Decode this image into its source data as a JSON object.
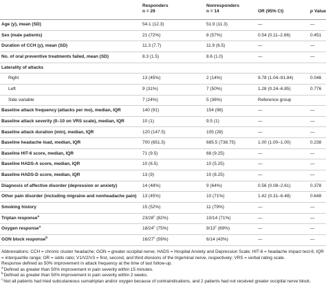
{
  "table": {
    "header": {
      "responders": [
        "Responders",
        "n = 29"
      ],
      "nonresponders": [
        "Nonresponders",
        "n = 14"
      ],
      "or": "OR (95% CI)",
      "p": {
        "italic": "p",
        "rest": "Value"
      }
    },
    "rows": [
      {
        "label": "Age (y), mean (SD)",
        "cells": [
          "54.1 (12.3)",
          "51.9 (11.3)",
          "—",
          "—"
        ]
      },
      {
        "label": "Sex (male patients)",
        "cells": [
          "21 (72%)",
          "8 (57%)",
          "0.54 (0.11–2.66)",
          "0.451"
        ]
      },
      {
        "label": "Duration of CCH (y), mean (SD)",
        "cells": [
          "11.3 (7.7)",
          "11.9 (6.5)",
          "—",
          "—"
        ]
      },
      {
        "label": "No. of oral preventive treatments failed, mean (SD)",
        "cells": [
          "8.3 (1.5)",
          "8.6 (1.0)",
          "—",
          "—"
        ]
      },
      {
        "label": "Laterality of attacks",
        "cells": []
      },
      {
        "label": "Right",
        "sub": true,
        "cells": [
          "13 (45%)",
          "2 (14%)",
          "9.78 (1.04–91.84)",
          "0.046"
        ]
      },
      {
        "label": "Left",
        "sub": true,
        "cells": [
          "9 (31%)",
          "7 (50%)",
          "1.28 (0.24–6.85)",
          "0.776"
        ]
      },
      {
        "label": "Side variable",
        "sub": true,
        "cells": [
          "7 (24%)",
          "5 (36%)",
          "Reference group"
        ]
      },
      {
        "label": "Baseline attack frequency (attacks per mo), median, IQR",
        "cells": [
          "140 (91)",
          "154 (98)",
          "—",
          "—"
        ]
      },
      {
        "label": "Baseline attack severity (0–10 on VRS scale), median, IQR",
        "cells": [
          "10 (1)",
          "9.5 (1)",
          "—",
          "—"
        ]
      },
      {
        "label": "Baseline attack duration (min), median, IQR",
        "cells": [
          "120 (147.5)",
          "105 (28)",
          "—",
          "—"
        ]
      },
      {
        "label": "Baseline headache load, median, IQR",
        "cells": [
          "700 (651.5)",
          "685.5 (738.75)",
          "1.00 (1.00–1.00)",
          "0.238"
        ]
      },
      {
        "label": "Baseline HIT-6 score, median, IQR",
        "cells": [
          "71 (9.5)",
          "68 (9.25)",
          "—",
          "—"
        ]
      },
      {
        "label": "Baseline HADS-A score, median, IQR",
        "cells": [
          "10 (6.5)",
          "10 (5.25)",
          "—",
          "—"
        ]
      },
      {
        "label": "Baseline HADS-D score, median, IQR",
        "cells": [
          "13 (9)",
          "10 (8.25)",
          "—",
          "—"
        ]
      },
      {
        "label": "Diagnosis of affective disorder (depression or anxiety)",
        "cells": [
          "14 (48%)",
          "9 (64%)",
          "0.56 (0.08–2.61)",
          "0.378"
        ]
      },
      {
        "label": "Other pain disorder (including migraine and nonheadache pain)",
        "cells": [
          "13 (45%)",
          "10 (71%)",
          "1.42 (0.31–6.48)",
          "0.648"
        ]
      },
      {
        "label": "Smoking history",
        "cells": [
          "15 (52%)",
          "11 (79%)",
          "—",
          "—"
        ]
      },
      {
        "label": "Triptan response",
        "note": "a",
        "cells": [
          {
            "text": "23/28",
            "sup": "c",
            "after": " (82%)"
          },
          "10/14 (71%)",
          "—",
          "—"
        ]
      },
      {
        "label": "Oxygen response",
        "note": "a",
        "cells": [
          {
            "text": "18/24",
            "sup": "c",
            "after": " (75%)"
          },
          {
            "text": "9/13",
            "sup": "c",
            "after": " (69%)"
          },
          "—",
          "—"
        ]
      },
      {
        "label": "GON block response",
        "note": "b",
        "cells": [
          {
            "text": "16/27",
            "sup": "c",
            "after": " (59%)"
          },
          "6/14 (43%)",
          "—",
          "—"
        ]
      }
    ],
    "footnotes": [
      {
        "text": "Abbreviations: CCH = chronic cluster headache; GON = greater occipital nerve; HADS = Hospital Anxiety and Depression Scale; HIT-6 = headache impact test-6; IQR = interquartile range; OR = odds ratio; V1/V2/V3 = first, second, and third divisions of the trigeminal nerve, respectively; VRS = verbal rating scale."
      },
      {
        "text": "Response defined as 50% improvement in attack frequency at the time of last follow-up."
      },
      {
        "mark": "a",
        "text": "Defined as greater than 50% improvement in pain severity within 15 minutes."
      },
      {
        "mark": "b",
        "text": "Defined as greater than 50% improvement in pain severity within 2 weeks."
      },
      {
        "mark": "c",
        "text": "Not all patients had tried subcutaneous sumatriptan and/or oxygen because of contraindications, and 2 patients had not received greater occipital nerve block."
      }
    ]
  }
}
